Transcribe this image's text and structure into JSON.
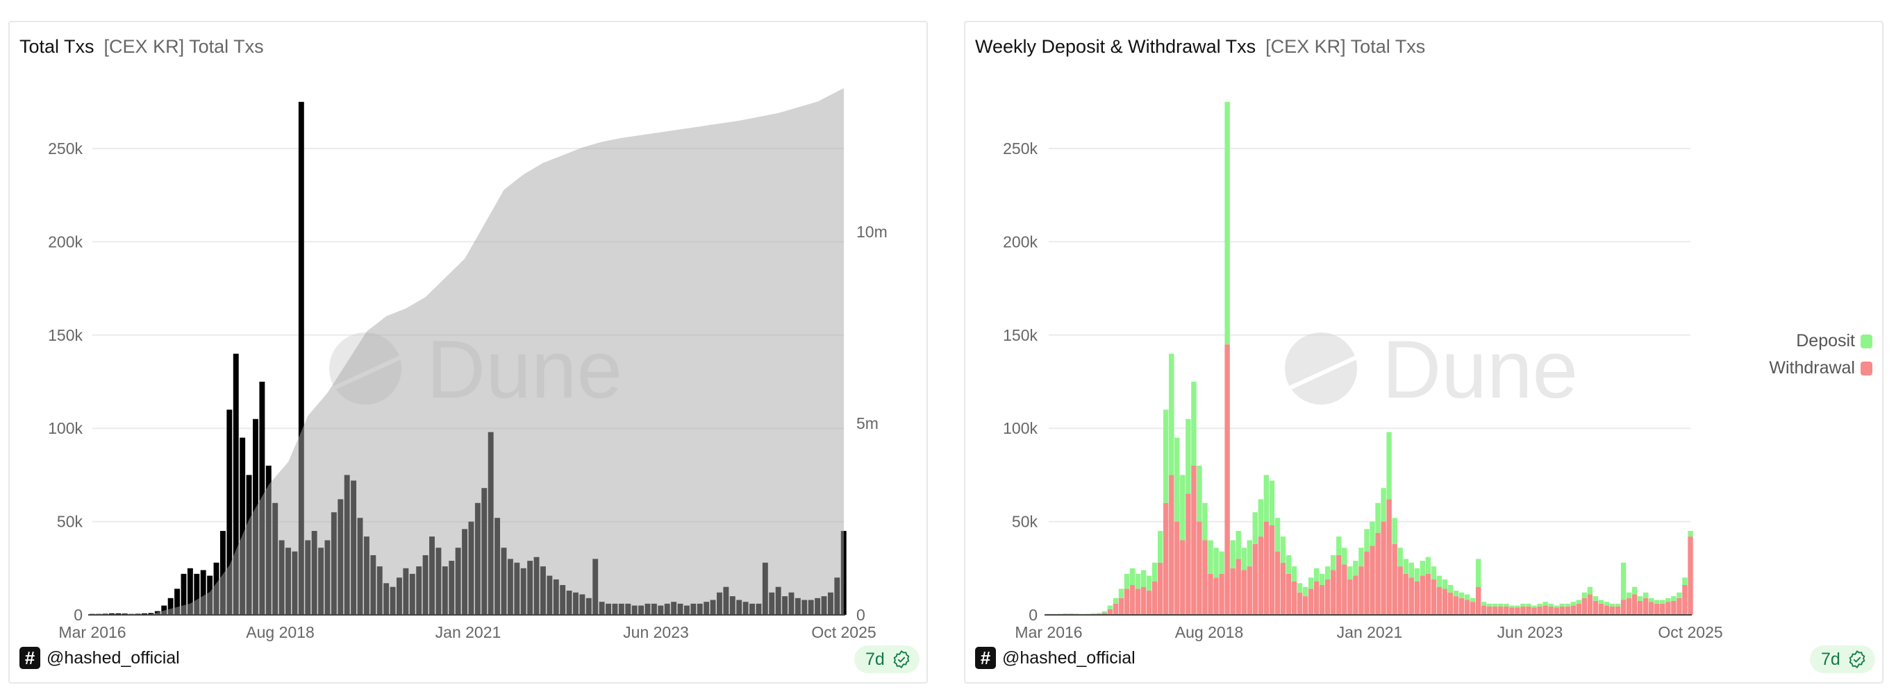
{
  "left_panel": {
    "title": "Total Txs",
    "subtitle": "[CEX KR] Total Txs",
    "author": "@hashed_official",
    "freshness": "7d",
    "watermark": "Dune"
  },
  "right_panel": {
    "title": "Weekly Deposit & Withdrawal Txs",
    "subtitle": "[CEX KR] Total Txs",
    "author": "@hashed_official",
    "freshness": "7d",
    "watermark": "Dune",
    "legend": [
      {
        "label": "Deposit",
        "color": "#8ef58a"
      },
      {
        "label": "Withdrawal",
        "color": "#f78a8a"
      }
    ]
  },
  "colors": {
    "bars": "#000000",
    "cumulative_area": "#a8a8a8",
    "deposit": "#8ef58a",
    "withdrawal": "#f78a8a",
    "badge_text": "#137a4b",
    "badge_bg": "#e6f9e6"
  },
  "chart_data": [
    {
      "type": "bar",
      "secondary_type": "area",
      "period_start": "2016-03",
      "period_step": "month",
      "x_tick_labels": [
        "Mar 2016",
        "Aug 2018",
        "Jan 2021",
        "Jun 2023",
        "Oct 2025"
      ],
      "y_tick_labels": [
        "0",
        "50k",
        "100k",
        "150k",
        "200k",
        "250k"
      ],
      "y_ticks": [
        0,
        50000,
        100000,
        150000,
        200000,
        250000
      ],
      "y2_tick_labels": [
        "0",
        "5m",
        "10m"
      ],
      "y2_ticks": [
        0,
        5000000,
        10000000
      ],
      "ylim": [
        0,
        280000
      ],
      "grid": true,
      "total_k": [
        0.5,
        0.5,
        0.6,
        0.8,
        0.8,
        0.7,
        0.5,
        0.6,
        0.8,
        1,
        2,
        5,
        9,
        14,
        22,
        25,
        22,
        24,
        21,
        28,
        45,
        110,
        140,
        95,
        75,
        105,
        125,
        80,
        60,
        40,
        36,
        34,
        275,
        40,
        45,
        36,
        40,
        55,
        62,
        75,
        72,
        52,
        42,
        32,
        26,
        17,
        15,
        20,
        25,
        22,
        26,
        32,
        42,
        36,
        26,
        29,
        36,
        46,
        50,
        60,
        68,
        98,
        52,
        36,
        30,
        28,
        25,
        29,
        31,
        26,
        21,
        19,
        16,
        13,
        12,
        11,
        9,
        30,
        7,
        6,
        6,
        6,
        6,
        5,
        5,
        6,
        6,
        5,
        6,
        7,
        6,
        5,
        6,
        6,
        7,
        8,
        12,
        15,
        10,
        8,
        7,
        6,
        6,
        28,
        12,
        15,
        10,
        12,
        9,
        8,
        8,
        9,
        10,
        12,
        20,
        45
      ],
      "cumulative_m": [
        [
          "2016-03",
          0
        ],
        [
          "2016-12",
          0.02
        ],
        [
          "2017-06",
          0.3
        ],
        [
          "2017-09",
          0.6
        ],
        [
          "2017-12",
          1.3
        ],
        [
          "2018-03",
          2.5
        ],
        [
          "2018-06",
          3.4
        ],
        [
          "2018-09",
          4.0
        ],
        [
          "2018-12",
          5.2
        ],
        [
          "2019-03",
          5.8
        ],
        [
          "2019-06",
          6.6
        ],
        [
          "2019-09",
          7.4
        ],
        [
          "2019-12",
          7.8
        ],
        [
          "2020-03",
          8.0
        ],
        [
          "2020-06",
          8.3
        ],
        [
          "2020-09",
          8.8
        ],
        [
          "2020-12",
          9.3
        ],
        [
          "2021-03",
          10.2
        ],
        [
          "2021-06",
          11.1
        ],
        [
          "2021-09",
          11.5
        ],
        [
          "2021-12",
          11.8
        ],
        [
          "2022-03",
          12.0
        ],
        [
          "2022-06",
          12.2
        ],
        [
          "2022-09",
          12.35
        ],
        [
          "2022-12",
          12.45
        ],
        [
          "2023-06",
          12.6
        ],
        [
          "2023-12",
          12.75
        ],
        [
          "2024-06",
          12.9
        ],
        [
          "2024-12",
          13.1
        ],
        [
          "2025-06",
          13.4
        ],
        [
          "2025-10",
          13.75
        ]
      ]
    },
    {
      "type": "bar",
      "stacked": true,
      "period_start": "2016-03",
      "period_step": "month",
      "x_tick_labels": [
        "Mar 2016",
        "Aug 2018",
        "Jan 2021",
        "Jun 2023",
        "Oct 2025"
      ],
      "y_tick_labels": [
        "0",
        "50k",
        "100k",
        "150k",
        "200k",
        "250k"
      ],
      "y_ticks": [
        0,
        50000,
        100000,
        150000,
        200000,
        250000
      ],
      "ylim": [
        0,
        280000
      ],
      "grid": true,
      "legend_placement": "right",
      "series": [
        {
          "name": "Withdrawal",
          "values_k": [
            0.3,
            0.3,
            0.4,
            0.5,
            0.5,
            0.4,
            0.3,
            0.4,
            0.5,
            0.6,
            1.2,
            3,
            6,
            9,
            14,
            16,
            14,
            15,
            13,
            18,
            28,
            60,
            75,
            50,
            40,
            65,
            80,
            50,
            40,
            22,
            20,
            22,
            145,
            25,
            30,
            24,
            26,
            38,
            42,
            50,
            48,
            34,
            28,
            22,
            18,
            12,
            10,
            14,
            18,
            16,
            19,
            24,
            32,
            27,
            19,
            21,
            26,
            34,
            37,
            44,
            50,
            62,
            38,
            26,
            22,
            20,
            18,
            21,
            22,
            19,
            15,
            14,
            12,
            10,
            9,
            8,
            7,
            15,
            5,
            4.5,
            4.5,
            4.5,
            4.5,
            4,
            4,
            4.5,
            4.5,
            4,
            4.5,
            5,
            4.5,
            4,
            4.5,
            4.5,
            5,
            6,
            9,
            11,
            7.5,
            6,
            5,
            4.5,
            4.5,
            8,
            9,
            11,
            7.5,
            9,
            7,
            6,
            6,
            7,
            7.5,
            9,
            16,
            42
          ]
        },
        {
          "name": "Deposit",
          "values_k": [
            0.2,
            0.2,
            0.2,
            0.3,
            0.3,
            0.3,
            0.2,
            0.2,
            0.3,
            0.4,
            0.8,
            2,
            3,
            5,
            8,
            9,
            8,
            9,
            8,
            10,
            17,
            50,
            65,
            45,
            35,
            40,
            45,
            30,
            20,
            18,
            16,
            12,
            130,
            15,
            15,
            12,
            14,
            17,
            20,
            25,
            24,
            18,
            14,
            10,
            8,
            5,
            5,
            6,
            7,
            6,
            7,
            8,
            10,
            9,
            7,
            8,
            10,
            12,
            13,
            16,
            18,
            36,
            14,
            10,
            8,
            8,
            7,
            8,
            9,
            7,
            6,
            5,
            4,
            3,
            3,
            3,
            2,
            15,
            2,
            1.5,
            1.5,
            1.5,
            1.5,
            1,
            1,
            1.5,
            1.5,
            1,
            1.5,
            2,
            1.5,
            1,
            1.5,
            1.5,
            2,
            2,
            3,
            4,
            2.5,
            2,
            2,
            1.5,
            1.5,
            20,
            3,
            4,
            2.5,
            3,
            2,
            2,
            2,
            2,
            2.5,
            3,
            4,
            3
          ]
        }
      ]
    }
  ]
}
